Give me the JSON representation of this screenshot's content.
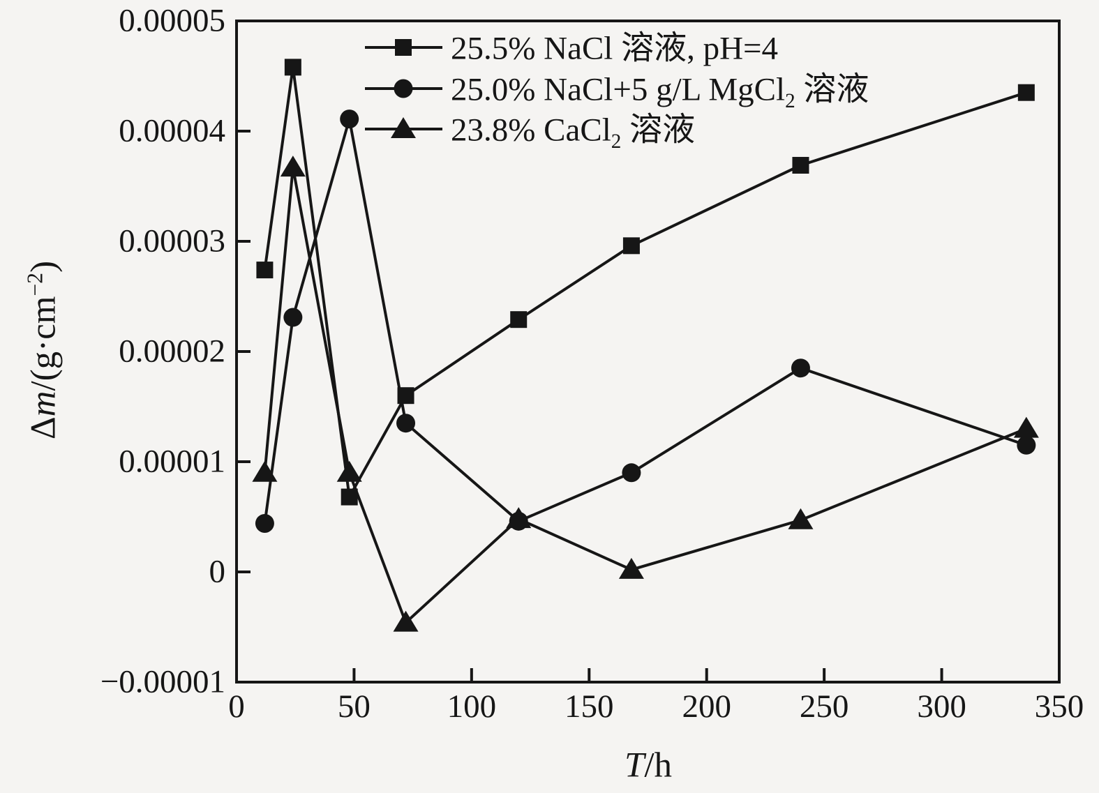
{
  "figure": {
    "background": "#f5f4f2",
    "ink": "#161616"
  },
  "chart_data": {
    "type": "line",
    "title": "",
    "xlabel": "T/h",
    "ylabel": "Δm/(g·cm⁻²)",
    "xlim": [
      0,
      350
    ],
    "ylim": [
      -1e-05,
      5e-05
    ],
    "grid": false,
    "legend_position": "top-center-inside",
    "x_ticks": [
      0,
      50,
      100,
      150,
      200,
      250,
      300,
      350
    ],
    "x_tick_labels": [
      "0",
      "50",
      "100",
      "150",
      "200",
      "250",
      "300",
      "350"
    ],
    "y_ticks": [
      -1e-05,
      0,
      1e-05,
      2e-05,
      3e-05,
      4e-05,
      5e-05
    ],
    "y_tick_labels": [
      "−0.00001",
      "0",
      "0.00001",
      "0.00002",
      "0.00003",
      "0.00004",
      "0.00005"
    ],
    "x": [
      12,
      24,
      48,
      72,
      120,
      168,
      240,
      336
    ],
    "series": [
      {
        "name": "25.5% NaCl 溶液, pH=4",
        "marker": "square",
        "values": [
          2.74e-05,
          4.58e-05,
          6.8e-06,
          1.6e-05,
          2.29e-05,
          2.96e-05,
          3.69e-05,
          4.35e-05
        ]
      },
      {
        "name": "25.0% NaCl+5 g/L MgCl₂ 溶液",
        "marker": "circle",
        "values": [
          4.4e-06,
          2.31e-05,
          4.11e-05,
          1.35e-05,
          4.6e-06,
          9e-06,
          1.85e-05,
          1.15e-05
        ]
      },
      {
        "name": "23.8% CaCl₂ 溶液",
        "marker": "triangle",
        "values": [
          9e-06,
          3.67e-05,
          9e-06,
          -4.6e-06,
          4.8e-06,
          2e-07,
          4.7e-06,
          1.3e-05
        ]
      }
    ]
  }
}
